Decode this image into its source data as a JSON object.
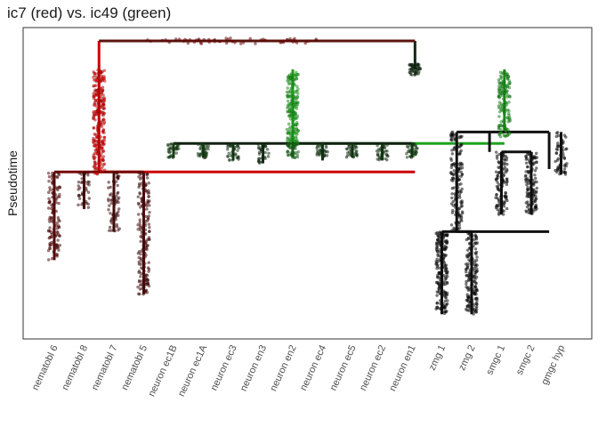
{
  "chart_data": {
    "type": "scatter",
    "title": "ic7 (red) vs. ic49 (green)",
    "xlabel": "",
    "ylabel": "Pseudotime",
    "grid": false,
    "legend": "none",
    "colors": {
      "ic7": "#e00000",
      "ic49": "#1fb31f",
      "none": "#111111"
    },
    "categories": [
      "nematobl 6",
      "nematobl 8",
      "nematobl 7",
      "nematobl 5",
      "neuron ec1B",
      "neuron ec1A",
      "neuron ec3",
      "neuron en3",
      "neuron en2",
      "neuron ec4",
      "neuron ec5",
      "neuron ec2",
      "neuron en1",
      "zmg 1",
      "zmg 2",
      "smgc 1",
      "smgc 2",
      "gmgc hyp"
    ],
    "ylim": [
      0,
      1
    ],
    "nodes": [
      {
        "id": "root",
        "x": 6.95,
        "y": 1.0,
        "ic7": 0.35,
        "ic49": 0.05
      },
      {
        "id": "nematobl",
        "x": 2.5,
        "y": 0.54,
        "ic7": 0.85,
        "ic49": 0.0
      },
      {
        "id": "rest",
        "x": 13.1,
        "y": 0.9,
        "ic7": 0.05,
        "ic49": 0.15
      },
      {
        "id": "neuron",
        "x": 8.0,
        "y": 0.64,
        "ic7": 0.0,
        "ic49": 0.7
      },
      {
        "id": "glia",
        "x": 16.1,
        "y": 0.68,
        "ic7": 0.0,
        "ic49": 0.65
      },
      {
        "id": "zmg",
        "x": 14.5,
        "y": 0.33,
        "ic7": 0.0,
        "ic49": 0.0
      },
      {
        "id": "smgc",
        "x": 15.6,
        "y": 0.61,
        "ic7": 0.0,
        "ic49": 0.0
      }
    ],
    "edges": [
      {
        "from": "root",
        "to": "nematobl",
        "x_from": 2.5,
        "x_to": 13.1,
        "y_top": 1.0,
        "y_bot": 0.54,
        "ic7": 0.9,
        "ic49": 0.0
      },
      {
        "from": "root",
        "to": "rest",
        "x_from": 13.1,
        "y_top": 1.0,
        "y_bot": 0.9,
        "ic7": 0.0,
        "ic49": 0.15
      },
      {
        "from": "rest",
        "to": "neuron",
        "x_from": 9.0,
        "x_to": 16.1,
        "y_top": 0.9,
        "y_bot": 0.64,
        "ic7": 0.0,
        "ic49": 0.9
      },
      {
        "from": "rest",
        "to": "glia",
        "x_from": 16.1,
        "y_top": 0.9,
        "y_bot": 0.68,
        "ic7": 0.0,
        "ic49": 0.75
      },
      {
        "from": "glia",
        "to": "zmg",
        "x_from": 14.5,
        "x_to": 17.6,
        "y_top": 0.68,
        "y_bot": 0.33,
        "ic7": 0.0,
        "ic49": 0.0
      },
      {
        "from": "glia",
        "to": "smgc",
        "x_from": 15.6,
        "y_top": 0.68,
        "y_bot": 0.61,
        "ic7": 0.0,
        "ic49": 0.0
      },
      {
        "from": "glia",
        "to": "gmgc hyp",
        "x_from": 17.6,
        "y_top": 0.68,
        "y_bot": 0.55,
        "ic7": 0.0,
        "ic49": 0.0
      }
    ],
    "leaves": [
      {
        "category": "nematobl 6",
        "parent_y": 0.54,
        "y_end": 0.23,
        "ic7": 0.35,
        "ic49": 0.0
      },
      {
        "category": "nematobl 8",
        "parent_y": 0.54,
        "y_end": 0.41,
        "ic7": 0.25,
        "ic49": 0.0
      },
      {
        "category": "nematobl 7",
        "parent_y": 0.54,
        "y_end": 0.33,
        "ic7": 0.25,
        "ic49": 0.0
      },
      {
        "category": "nematobl 5",
        "parent_y": 0.54,
        "y_end": 0.11,
        "ic7": 0.3,
        "ic49": 0.0
      },
      {
        "category": "neuron ec1B",
        "parent_y": 0.64,
        "y_end": 0.59,
        "ic7": 0.0,
        "ic49": 0.3
      },
      {
        "category": "neuron ec1A",
        "parent_y": 0.64,
        "y_end": 0.59,
        "ic7": 0.0,
        "ic49": 0.3
      },
      {
        "category": "neuron ec3",
        "parent_y": 0.64,
        "y_end": 0.58,
        "ic7": 0.0,
        "ic49": 0.25
      },
      {
        "category": "neuron en3",
        "parent_y": 0.64,
        "y_end": 0.57,
        "ic7": 0.0,
        "ic49": 0.2
      },
      {
        "category": "neuron en2",
        "parent_y": 0.64,
        "y_end": 0.59,
        "ic7": 0.0,
        "ic49": 0.55
      },
      {
        "category": "neuron ec4",
        "parent_y": 0.64,
        "y_end": 0.58,
        "ic7": 0.0,
        "ic49": 0.25
      },
      {
        "category": "neuron ec5",
        "parent_y": 0.64,
        "y_end": 0.59,
        "ic7": 0.0,
        "ic49": 0.25
      },
      {
        "category": "neuron ec2",
        "parent_y": 0.64,
        "y_end": 0.58,
        "ic7": 0.0,
        "ic49": 0.25
      },
      {
        "category": "neuron en1",
        "parent_y": 0.64,
        "y_end": 0.59,
        "ic7": 0.0,
        "ic49": 0.3
      },
      {
        "category": "zmg 1",
        "parent_y": 0.33,
        "y_end": 0.04,
        "ic7": 0.0,
        "ic49": 0.0
      },
      {
        "category": "zmg 2",
        "parent_y": 0.33,
        "y_end": 0.04,
        "ic7": 0.0,
        "ic49": 0.0
      },
      {
        "category": "smgc 1",
        "parent_y": 0.61,
        "y_end": 0.39,
        "ic7": 0.0,
        "ic49": 0.0
      },
      {
        "category": "smgc 2",
        "parent_y": 0.61,
        "y_end": 0.39,
        "ic7": 0.0,
        "ic49": 0.0
      },
      {
        "category": "gmgc hyp",
        "parent_y": 0.68,
        "y_end": 0.53,
        "ic7": 0.0,
        "ic49": 0.0
      }
    ],
    "point_clouds": [
      {
        "x": 6.95,
        "y_from": 0.99,
        "y_to": 1.01,
        "spread": 5.7,
        "n": 60,
        "ic7": 0.5,
        "ic49": 0.0
      },
      {
        "x": 2.5,
        "y_from": 0.53,
        "y_to": 0.9,
        "spread": 0.2,
        "n": 260,
        "ic7": 0.95,
        "ic49": 0.0
      },
      {
        "x": 13.1,
        "y_from": 0.88,
        "y_to": 0.92,
        "spread": 0.2,
        "n": 50,
        "ic7": 0.0,
        "ic49": 0.15
      },
      {
        "x": 9.0,
        "y_from": 0.63,
        "y_to": 0.89,
        "spread": 0.2,
        "n": 200,
        "ic7": 0.0,
        "ic49": 0.9
      },
      {
        "x": 16.1,
        "y_from": 0.66,
        "y_to": 0.89,
        "spread": 0.2,
        "n": 140,
        "ic7": 0.0,
        "ic49": 0.8
      },
      {
        "x": 1.0,
        "y_from": 0.23,
        "y_to": 0.54,
        "spread": 0.2,
        "n": 120,
        "ic7": 0.35,
        "ic49": 0.0
      },
      {
        "x": 2.0,
        "y_from": 0.41,
        "y_to": 0.54,
        "spread": 0.2,
        "n": 40,
        "ic7": 0.25,
        "ic49": 0.0
      },
      {
        "x": 3.0,
        "y_from": 0.33,
        "y_to": 0.54,
        "spread": 0.2,
        "n": 70,
        "ic7": 0.25,
        "ic49": 0.0
      },
      {
        "x": 4.0,
        "y_from": 0.11,
        "y_to": 0.54,
        "spread": 0.2,
        "n": 180,
        "ic7": 0.3,
        "ic49": 0.0
      },
      {
        "x": 14.0,
        "y_from": 0.04,
        "y_to": 0.33,
        "spread": 0.2,
        "n": 200,
        "ic7": 0.0,
        "ic49": 0.0
      },
      {
        "x": 14.5,
        "y_from": 0.33,
        "y_to": 0.68,
        "spread": 0.2,
        "n": 160,
        "ic7": 0.0,
        "ic49": 0.0
      },
      {
        "x": 15.0,
        "y_from": 0.04,
        "y_to": 0.33,
        "spread": 0.2,
        "n": 170,
        "ic7": 0.0,
        "ic49": 0.0
      },
      {
        "x": 16.0,
        "y_from": 0.39,
        "y_to": 0.61,
        "spread": 0.2,
        "n": 110,
        "ic7": 0.0,
        "ic49": 0.0
      },
      {
        "x": 17.0,
        "y_from": 0.39,
        "y_to": 0.61,
        "spread": 0.2,
        "n": 130,
        "ic7": 0.0,
        "ic49": 0.0
      },
      {
        "x": 18.0,
        "y_from": 0.53,
        "y_to": 0.68,
        "spread": 0.2,
        "n": 60,
        "ic7": 0.0,
        "ic49": 0.0
      },
      {
        "x": 5.0,
        "y_from": 0.59,
        "y_to": 0.64,
        "spread": 0.2,
        "n": 35,
        "ic7": 0.0,
        "ic49": 0.3
      },
      {
        "x": 6.0,
        "y_from": 0.59,
        "y_to": 0.64,
        "spread": 0.2,
        "n": 35,
        "ic7": 0.0,
        "ic49": 0.3
      },
      {
        "x": 7.0,
        "y_from": 0.58,
        "y_to": 0.64,
        "spread": 0.2,
        "n": 35,
        "ic7": 0.0,
        "ic49": 0.25
      },
      {
        "x": 8.0,
        "y_from": 0.57,
        "y_to": 0.64,
        "spread": 0.2,
        "n": 35,
        "ic7": 0.0,
        "ic49": 0.2
      },
      {
        "x": 9.0,
        "y_from": 0.59,
        "y_to": 0.64,
        "spread": 0.2,
        "n": 40,
        "ic7": 0.0,
        "ic49": 0.55
      },
      {
        "x": 10.0,
        "y_from": 0.59,
        "y_to": 0.64,
        "spread": 0.2,
        "n": 35,
        "ic7": 0.0,
        "ic49": 0.25
      },
      {
        "x": 11.0,
        "y_from": 0.59,
        "y_to": 0.64,
        "spread": 0.2,
        "n": 35,
        "ic7": 0.0,
        "ic49": 0.25
      },
      {
        "x": 12.0,
        "y_from": 0.58,
        "y_to": 0.64,
        "spread": 0.2,
        "n": 35,
        "ic7": 0.0,
        "ic49": 0.25
      },
      {
        "x": 13.0,
        "y_from": 0.59,
        "y_to": 0.64,
        "spread": 0.2,
        "n": 35,
        "ic7": 0.0,
        "ic49": 0.3
      }
    ]
  }
}
